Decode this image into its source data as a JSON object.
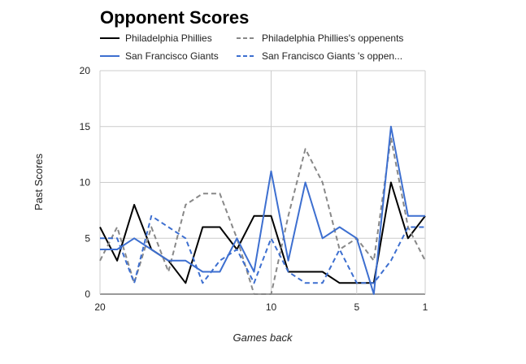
{
  "chart_data": {
    "type": "line",
    "title": "Opponent Scores",
    "xlabel": "Games back",
    "ylabel": "Past Scores",
    "x": [
      20,
      19,
      18,
      17,
      16,
      15,
      14,
      13,
      12,
      11,
      10,
      9,
      8,
      7,
      6,
      5,
      4,
      3,
      2,
      1
    ],
    "x_ticks": [
      20,
      10,
      5,
      1
    ],
    "x_reversed": true,
    "ylim": [
      0,
      20
    ],
    "y_ticks": [
      0,
      5,
      10,
      15,
      20
    ],
    "grid": true,
    "legend_position": "top",
    "series": [
      {
        "name": "Philadelphia Phillies",
        "color": "#000000",
        "dashed": false,
        "values": [
          6,
          3,
          8,
          4,
          3,
          1,
          6,
          6,
          4,
          7,
          7,
          2,
          2,
          2,
          1,
          1,
          1,
          10,
          5,
          7
        ]
      },
      {
        "name": "Philadelphia Phillies's oppenents",
        "color": "#888888",
        "dashed": true,
        "values": [
          3,
          6,
          1,
          6,
          2,
          8,
          9,
          9,
          5,
          0,
          0,
          7,
          13,
          10,
          4,
          5,
          3,
          14,
          6,
          3
        ]
      },
      {
        "name": "San Francisco Giants",
        "color": "#3d6fd0",
        "dashed": false,
        "values": [
          4,
          4,
          5,
          4,
          3,
          3,
          2,
          2,
          5,
          2,
          11,
          3,
          10,
          5,
          6,
          5,
          0,
          15,
          7,
          7
        ]
      },
      {
        "name": "San Francisco Giants 's oppen...",
        "color": "#3d6fd0",
        "dashed": true,
        "values": [
          5,
          5,
          1,
          7,
          6,
          5,
          1,
          3,
          4,
          1,
          5,
          2,
          1,
          1,
          4,
          1,
          1,
          3,
          6,
          6
        ]
      }
    ]
  }
}
